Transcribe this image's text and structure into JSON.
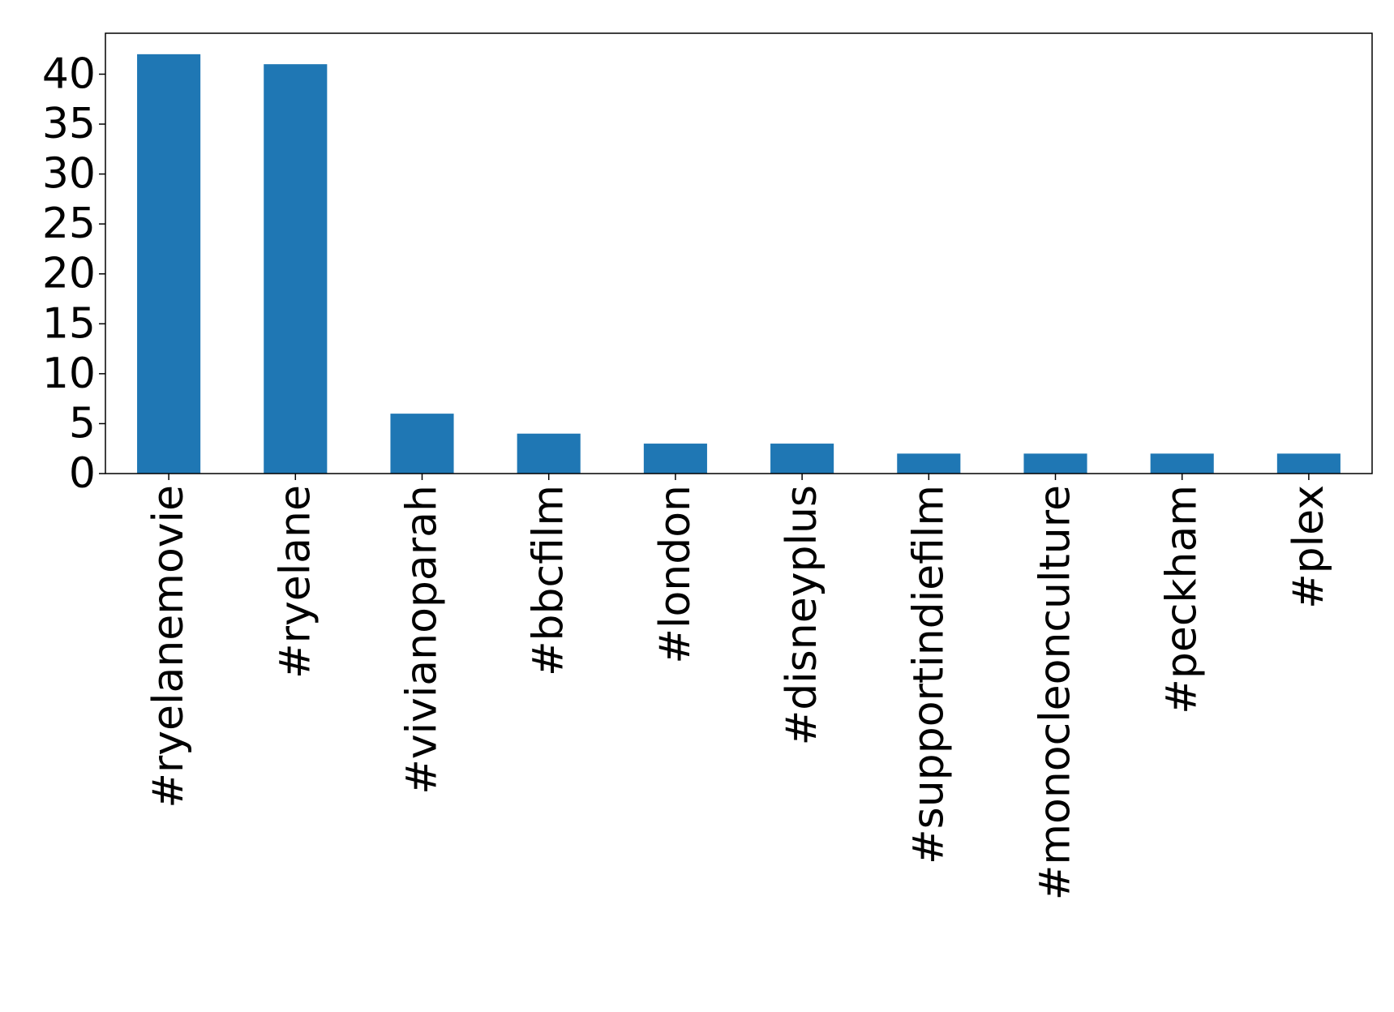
{
  "chart_data": {
    "type": "bar",
    "categories": [
      "#ryelanemovie",
      "#ryelane",
      "#vivianoparah",
      "#bbcfilm",
      "#london",
      "#disneyplus",
      "#supportindiefilm",
      "#monocleonculture",
      "#peckham",
      "#plex"
    ],
    "values": [
      42,
      41,
      6,
      4,
      3,
      3,
      2,
      2,
      2,
      2
    ],
    "yticks": [
      0,
      5,
      10,
      15,
      20,
      25,
      30,
      35,
      40
    ],
    "ylim": [
      0,
      44.1
    ],
    "title": "",
    "xlabel": "",
    "ylabel": "",
    "bar_color": "#1f77b4",
    "grid": false,
    "legend": "none"
  }
}
